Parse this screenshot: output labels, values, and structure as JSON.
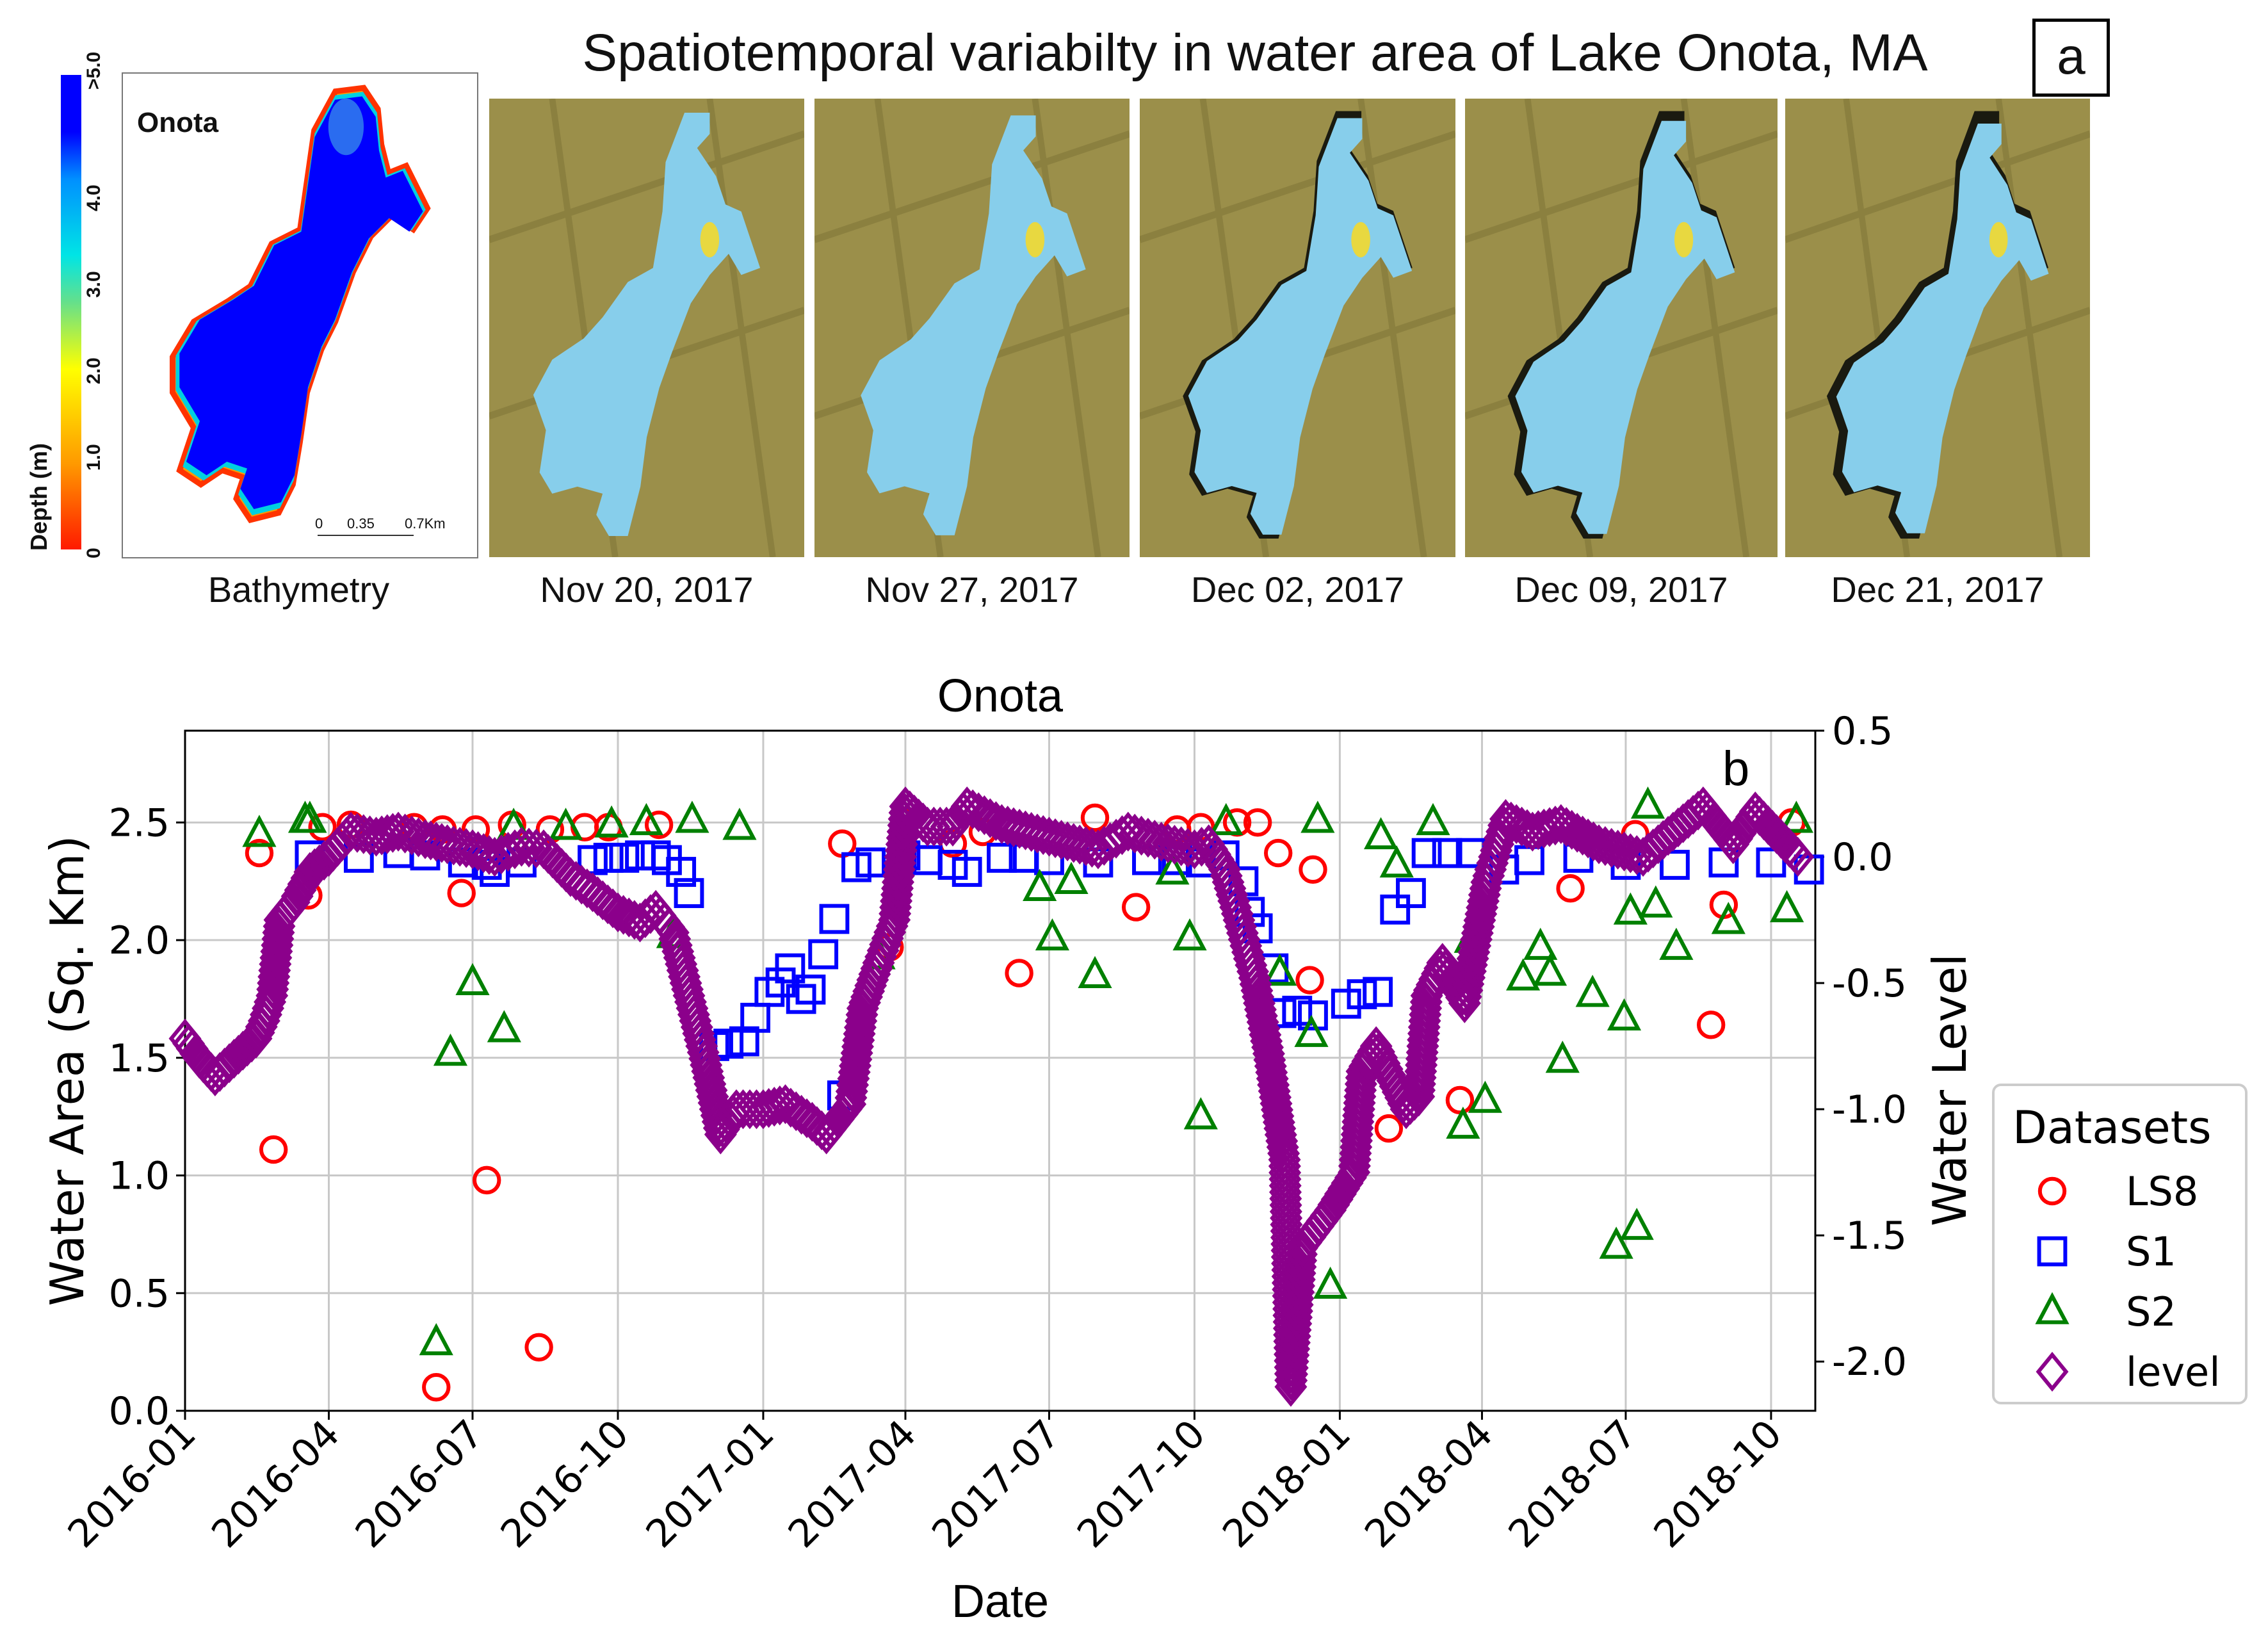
{
  "figure": {
    "title": "Spatiotemporal variabilty in water area of Lake Onota, MA",
    "panel_a_label": "a",
    "panel_b_label": "b",
    "bathymetry": {
      "lake_name": "Onota",
      "label": "Bathymetry",
      "colorbar_label": "Depth (m)",
      "colorbar_ticks": [
        "0",
        "1.0",
        "2.0",
        "3.0",
        "4.0",
        ">5.0"
      ],
      "scale_bar": [
        "0",
        "0.35",
        "0.7Km"
      ]
    },
    "image_dates": [
      "Nov 20, 2017",
      "Nov 27, 2017",
      "Dec 02, 2017",
      "Dec 09, 2017",
      "Dec 21, 2017"
    ],
    "colors": {
      "water": "#87ceeb",
      "land": "#9b8f4a",
      "deep": "#0000ff"
    }
  },
  "chart_data": {
    "type": "scatter",
    "title": "Onota",
    "xlabel": "Date",
    "ylabel": "Water Area (Sq. Km)",
    "ylabel_right": "Water Level",
    "xlim": [
      "2016-01-01",
      "2018-10-29"
    ],
    "ylim": [
      0,
      2.89
    ],
    "ylim_right": [
      -2.195,
      0.5
    ],
    "x_ticks": [
      "2016-01",
      "2016-04",
      "2016-07",
      "2016-10",
      "2017-01",
      "2017-04",
      "2017-07",
      "2017-10",
      "2018-01",
      "2018-04",
      "2018-07",
      "2018-10"
    ],
    "y_ticks": [
      "0.0",
      "0.5",
      "1.0",
      "1.5",
      "2.0",
      "2.5"
    ],
    "y_ticks_right": [
      "-2.0",
      "-1.5",
      "-1.0",
      "-0.5",
      "0.0",
      "0.5"
    ],
    "grid": true,
    "legend": {
      "title": "Datasets",
      "placement": "outside-right"
    },
    "series": [
      {
        "name": "LS8",
        "axis": "left",
        "marker": "circle",
        "color": "#ff0000",
        "points": [
          [
            "2016-02-17",
            2.37
          ],
          [
            "2016-02-26",
            1.11
          ],
          [
            "2016-03-19",
            2.19
          ],
          [
            "2016-03-28",
            2.48
          ],
          [
            "2016-04-15",
            2.49
          ],
          [
            "2016-05-25",
            2.48
          ],
          [
            "2016-06-08",
            0.1
          ],
          [
            "2016-06-12",
            2.47
          ],
          [
            "2016-06-24",
            2.2
          ],
          [
            "2016-07-03",
            2.47
          ],
          [
            "2016-07-10",
            0.98
          ],
          [
            "2016-07-26",
            2.49
          ],
          [
            "2016-08-12",
            0.27
          ],
          [
            "2016-08-19",
            2.47
          ],
          [
            "2016-09-10",
            2.48
          ],
          [
            "2016-09-25",
            2.48
          ],
          [
            "2016-10-27",
            2.49
          ],
          [
            "2017-02-20",
            2.41
          ],
          [
            "2017-03-22",
            1.97
          ],
          [
            "2017-04-01",
            2.5
          ],
          [
            "2017-05-01",
            2.41
          ],
          [
            "2017-05-20",
            2.46
          ],
          [
            "2017-06-12",
            1.86
          ],
          [
            "2017-07-30",
            2.52
          ],
          [
            "2017-08-25",
            2.14
          ],
          [
            "2017-09-20",
            2.47
          ],
          [
            "2017-10-05",
            2.48
          ],
          [
            "2017-10-28",
            2.5
          ],
          [
            "2017-11-10",
            2.5
          ],
          [
            "2017-11-23",
            2.37
          ],
          [
            "2017-12-13",
            1.83
          ],
          [
            "2017-12-15",
            2.3
          ],
          [
            "2018-02-01",
            1.2
          ],
          [
            "2018-03-18",
            1.32
          ],
          [
            "2018-05-27",
            2.22
          ],
          [
            "2018-07-07",
            2.45
          ],
          [
            "2018-08-24",
            1.64
          ],
          [
            "2018-09-01",
            2.15
          ],
          [
            "2018-10-14",
            2.5
          ]
        ]
      },
      {
        "name": "S1",
        "axis": "left",
        "marker": "square",
        "color": "#0000ff",
        "points": [
          [
            "2016-03-20",
            2.36
          ],
          [
            "2016-04-20",
            2.35
          ],
          [
            "2016-05-15",
            2.37
          ],
          [
            "2016-06-01",
            2.36
          ],
          [
            "2016-06-25",
            2.33
          ],
          [
            "2016-07-10",
            2.32
          ],
          [
            "2016-07-15",
            2.29
          ],
          [
            "2016-08-01",
            2.33
          ],
          [
            "2016-09-15",
            2.34
          ],
          [
            "2016-09-25",
            2.35
          ],
          [
            "2016-10-05",
            2.35
          ],
          [
            "2016-10-15",
            2.36
          ],
          [
            "2016-10-25",
            2.36
          ],
          [
            "2016-11-01",
            2.34
          ],
          [
            "2016-11-10",
            2.29
          ],
          [
            "2016-11-15",
            2.2
          ],
          [
            "2016-12-01",
            1.55
          ],
          [
            "2016-12-10",
            1.56
          ],
          [
            "2016-12-20",
            1.57
          ],
          [
            "2016-12-27",
            1.67
          ],
          [
            "2017-01-05",
            1.78
          ],
          [
            "2017-01-12",
            1.82
          ],
          [
            "2017-01-18",
            1.88
          ],
          [
            "2017-01-25",
            1.75
          ],
          [
            "2017-01-31",
            1.79
          ],
          [
            "2017-02-08",
            1.94
          ],
          [
            "2017-02-15",
            2.09
          ],
          [
            "2017-02-20",
            1.34
          ],
          [
            "2017-03-01",
            2.31
          ],
          [
            "2017-03-10",
            2.33
          ],
          [
            "2017-04-01",
            2.36
          ],
          [
            "2017-04-15",
            2.34
          ],
          [
            "2017-05-01",
            2.32
          ],
          [
            "2017-05-10",
            2.29
          ],
          [
            "2017-06-01",
            2.35
          ],
          [
            "2017-06-15",
            2.35
          ],
          [
            "2017-07-01",
            2.34
          ],
          [
            "2017-08-01",
            2.33
          ],
          [
            "2017-09-01",
            2.34
          ],
          [
            "2017-09-20",
            2.34
          ],
          [
            "2017-10-05",
            2.33
          ],
          [
            "2017-10-20",
            2.36
          ],
          [
            "2017-11-01",
            2.25
          ],
          [
            "2017-11-05",
            2.12
          ],
          [
            "2017-11-10",
            2.05
          ],
          [
            "2017-11-20",
            1.88
          ],
          [
            "2017-11-25",
            1.69
          ],
          [
            "2017-12-05",
            1.7
          ],
          [
            "2017-12-15",
            1.68
          ],
          [
            "2018-01-05",
            1.73
          ],
          [
            "2018-01-15",
            1.77
          ],
          [
            "2018-01-25",
            1.78
          ],
          [
            "2018-02-05",
            2.13
          ],
          [
            "2018-02-15",
            2.2
          ],
          [
            "2018-02-25",
            2.37
          ],
          [
            "2018-03-10",
            2.37
          ],
          [
            "2018-03-25",
            2.37
          ],
          [
            "2018-04-15",
            2.3
          ],
          [
            "2018-05-01",
            2.34
          ],
          [
            "2018-06-01",
            2.35
          ],
          [
            "2018-07-01",
            2.32
          ],
          [
            "2018-08-01",
            2.32
          ],
          [
            "2018-09-01",
            2.33
          ],
          [
            "2018-10-01",
            2.33
          ],
          [
            "2018-10-25",
            2.3
          ]
        ]
      },
      {
        "name": "S2",
        "axis": "left",
        "marker": "triangle",
        "color": "#008000",
        "points": [
          [
            "2016-02-17",
            2.45
          ],
          [
            "2016-03-17",
            2.51
          ],
          [
            "2016-03-20",
            2.51
          ],
          [
            "2016-06-08",
            0.29
          ],
          [
            "2016-06-17",
            1.52
          ],
          [
            "2016-07-01",
            1.82
          ],
          [
            "2016-07-21",
            1.62
          ],
          [
            "2016-07-27",
            2.48
          ],
          [
            "2016-08-29",
            2.48
          ],
          [
            "2016-09-27",
            2.49
          ],
          [
            "2016-10-19",
            2.5
          ],
          [
            "2016-11-05",
            2.02
          ],
          [
            "2016-11-17",
            2.51
          ],
          [
            "2016-12-17",
            2.48
          ],
          [
            "2017-03-15",
            1.93
          ],
          [
            "2017-06-25",
            2.22
          ],
          [
            "2017-07-03",
            2.01
          ],
          [
            "2017-07-15",
            2.25
          ],
          [
            "2017-07-30",
            1.85
          ],
          [
            "2017-09-17",
            2.29
          ],
          [
            "2017-09-28",
            2.01
          ],
          [
            "2017-10-05",
            1.25
          ],
          [
            "2017-10-21",
            2.5
          ],
          [
            "2017-11-24",
            1.86
          ],
          [
            "2017-12-14",
            1.6
          ],
          [
            "2017-12-18",
            2.51
          ],
          [
            "2017-12-26",
            0.53
          ],
          [
            "2018-01-27",
            2.44
          ],
          [
            "2018-02-06",
            2.32
          ],
          [
            "2018-03-01",
            2.5
          ],
          [
            "2018-03-20",
            1.21
          ],
          [
            "2018-03-25",
            2.0
          ],
          [
            "2018-04-03",
            1.32
          ],
          [
            "2018-04-27",
            1.84
          ],
          [
            "2018-05-08",
            1.97
          ],
          [
            "2018-05-14",
            1.86
          ],
          [
            "2018-05-22",
            1.49
          ],
          [
            "2018-06-10",
            1.77
          ],
          [
            "2018-06-25",
            0.7
          ],
          [
            "2018-06-30",
            1.67
          ],
          [
            "2018-07-04",
            2.12
          ],
          [
            "2018-07-08",
            0.78
          ],
          [
            "2018-07-15",
            2.57
          ],
          [
            "2018-07-20",
            2.15
          ],
          [
            "2018-08-02",
            1.97
          ],
          [
            "2018-09-04",
            2.08
          ],
          [
            "2018-10-11",
            2.13
          ],
          [
            "2018-10-17",
            2.51
          ]
        ]
      },
      {
        "name": "level",
        "axis": "right",
        "marker": "diamond",
        "color": "#8b008b",
        "points": [
          [
            "2016-01-01",
            -0.72
          ],
          [
            "2016-01-10",
            -0.8
          ],
          [
            "2016-01-20",
            -0.87
          ],
          [
            "2016-02-01",
            -0.8
          ],
          [
            "2016-02-15",
            -0.72
          ],
          [
            "2016-02-20",
            -0.65
          ],
          [
            "2016-02-25",
            -0.55
          ],
          [
            "2016-03-01",
            -0.25
          ],
          [
            "2016-03-10",
            -0.18
          ],
          [
            "2016-03-20",
            -0.06
          ],
          [
            "2016-04-01",
            0.0
          ],
          [
            "2016-04-15",
            0.1
          ],
          [
            "2016-05-01",
            0.08
          ],
          [
            "2016-05-15",
            0.1
          ],
          [
            "2016-06-01",
            0.07
          ],
          [
            "2016-06-15",
            0.05
          ],
          [
            "2016-07-01",
            0.03
          ],
          [
            "2016-07-15",
            0.0
          ],
          [
            "2016-08-01",
            0.04
          ],
          [
            "2016-08-15",
            0.03
          ],
          [
            "2016-09-01",
            -0.08
          ],
          [
            "2016-09-15",
            -0.14
          ],
          [
            "2016-10-01",
            -0.22
          ],
          [
            "2016-10-15",
            -0.26
          ],
          [
            "2016-10-25",
            -0.21
          ],
          [
            "2016-11-05",
            -0.3
          ],
          [
            "2016-11-15",
            -0.55
          ],
          [
            "2016-11-25",
            -0.8
          ],
          [
            "2016-12-05",
            -1.1
          ],
          [
            "2016-12-15",
            -1.0
          ],
          [
            "2017-01-01",
            -1.0
          ],
          [
            "2017-01-15",
            -0.98
          ],
          [
            "2017-02-01",
            -1.05
          ],
          [
            "2017-02-10",
            -1.1
          ],
          [
            "2017-02-25",
            -0.98
          ],
          [
            "2017-03-05",
            -0.6
          ],
          [
            "2017-03-15",
            -0.42
          ],
          [
            "2017-03-25",
            -0.25
          ],
          [
            "2017-04-01",
            0.2
          ],
          [
            "2017-04-15",
            0.12
          ],
          [
            "2017-05-01",
            0.12
          ],
          [
            "2017-05-10",
            0.2
          ],
          [
            "2017-06-01",
            0.13
          ],
          [
            "2017-07-01",
            0.08
          ],
          [
            "2017-08-01",
            0.03
          ],
          [
            "2017-08-20",
            0.1
          ],
          [
            "2017-09-10",
            0.06
          ],
          [
            "2017-10-01",
            0.03
          ],
          [
            "2017-10-10",
            0.05
          ],
          [
            "2017-10-20",
            -0.05
          ],
          [
            "2017-10-27",
            -0.2
          ],
          [
            "2017-11-08",
            -0.48
          ],
          [
            "2017-11-17",
            -0.78
          ],
          [
            "2017-11-27",
            -1.2
          ],
          [
            "2017-12-01",
            -2.1
          ],
          [
            "2017-12-08",
            -1.55
          ],
          [
            "2017-12-26",
            -1.4
          ],
          [
            "2018-01-10",
            -1.25
          ],
          [
            "2018-01-15",
            -0.85
          ],
          [
            "2018-01-24",
            -0.75
          ],
          [
            "2018-02-12",
            -1.0
          ],
          [
            "2018-02-20",
            -0.95
          ],
          [
            "2018-02-25",
            -0.55
          ],
          [
            "2018-03-07",
            -0.42
          ],
          [
            "2018-03-21",
            -0.58
          ],
          [
            "2018-04-04",
            -0.1
          ],
          [
            "2018-04-16",
            0.15
          ],
          [
            "2018-05-03",
            0.1
          ],
          [
            "2018-05-21",
            0.13
          ],
          [
            "2018-06-14",
            0.05
          ],
          [
            "2018-07-12",
            0.0
          ],
          [
            "2018-08-19",
            0.2
          ],
          [
            "2018-09-07",
            0.05
          ],
          [
            "2018-09-21",
            0.18
          ],
          [
            "2018-10-18",
            0.0
          ]
        ]
      }
    ]
  }
}
